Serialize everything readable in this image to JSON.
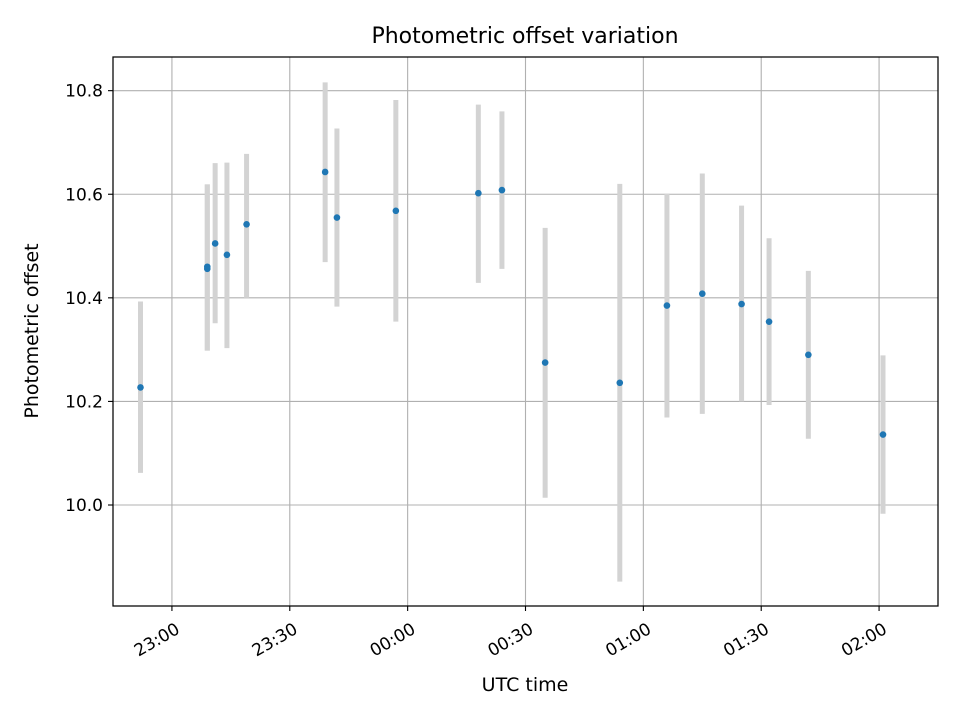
{
  "chart_data": {
    "type": "scatter",
    "title": "Photometric offset variation",
    "xlabel": "UTC time",
    "ylabel": "Photometric offset",
    "x_axis_type": "time",
    "x_reference_date": "",
    "xlim": [
      "22:45",
      "03:15"
    ],
    "xlim_minutes": [
      -15,
      195
    ],
    "ylim": [
      9.805,
      10.865
    ],
    "grid": true,
    "legend": "none",
    "x_ticks": [
      {
        "label": "23:00",
        "minute": 0
      },
      {
        "label": "23:30",
        "minute": 30
      },
      {
        "label": "00:00",
        "minute": 60
      },
      {
        "label": "00:30",
        "minute": 90
      },
      {
        "label": "01:00",
        "minute": 120
      },
      {
        "label": "01:30",
        "minute": 150
      },
      {
        "label": "02:00",
        "minute": 180
      }
    ],
    "y_ticks": [
      {
        "label": "10.0",
        "value": 10.0
      },
      {
        "label": "10.2",
        "value": 10.2
      },
      {
        "label": "10.4",
        "value": 10.4
      },
      {
        "label": "10.6",
        "value": 10.6
      },
      {
        "label": "10.8",
        "value": 10.8
      }
    ],
    "series": [
      {
        "marker_color": "#1f77b4",
        "errorbar_color": "#d3d3d3",
        "points": [
          {
            "time": "22:52",
            "y": 10.227,
            "ymin": 10.062,
            "ymax": 10.393
          },
          {
            "time": "23:09",
            "y": 10.456,
            "ymin": 10.298,
            "ymax": 10.619
          },
          {
            "time": "23:09",
            "y": 10.46,
            "ymin": 10.298,
            "ymax": 10.619
          },
          {
            "time": "23:11",
            "y": 10.505,
            "ymin": 10.351,
            "ymax": 10.66
          },
          {
            "time": "23:14",
            "y": 10.483,
            "ymin": 10.303,
            "ymax": 10.661
          },
          {
            "time": "23:19",
            "y": 10.542,
            "ymin": 10.4,
            "ymax": 10.678
          },
          {
            "time": "23:39",
            "y": 10.643,
            "ymin": 10.469,
            "ymax": 10.816
          },
          {
            "time": "23:42",
            "y": 10.555,
            "ymin": 10.383,
            "ymax": 10.727
          },
          {
            "time": "23:57",
            "y": 10.568,
            "ymin": 10.354,
            "ymax": 10.782
          },
          {
            "time": "00:18",
            "y": 10.602,
            "ymin": 10.429,
            "ymax": 10.773
          },
          {
            "time": "00:24",
            "y": 10.608,
            "ymin": 10.456,
            "ymax": 10.76
          },
          {
            "time": "00:35",
            "y": 10.275,
            "ymin": 10.014,
            "ymax": 10.535
          },
          {
            "time": "00:54",
            "y": 10.236,
            "ymin": 9.852,
            "ymax": 10.62
          },
          {
            "time": "01:06",
            "y": 10.385,
            "ymin": 10.169,
            "ymax": 10.601
          },
          {
            "time": "01:15",
            "y": 10.408,
            "ymin": 10.176,
            "ymax": 10.64
          },
          {
            "time": "01:25",
            "y": 10.388,
            "ymin": 10.2,
            "ymax": 10.578
          },
          {
            "time": "01:32",
            "y": 10.354,
            "ymin": 10.193,
            "ymax": 10.515
          },
          {
            "time": "01:42",
            "y": 10.29,
            "ymin": 10.128,
            "ymax": 10.452
          },
          {
            "time": "02:01",
            "y": 10.136,
            "ymin": 9.983,
            "ymax": 10.289
          }
        ]
      }
    ]
  }
}
